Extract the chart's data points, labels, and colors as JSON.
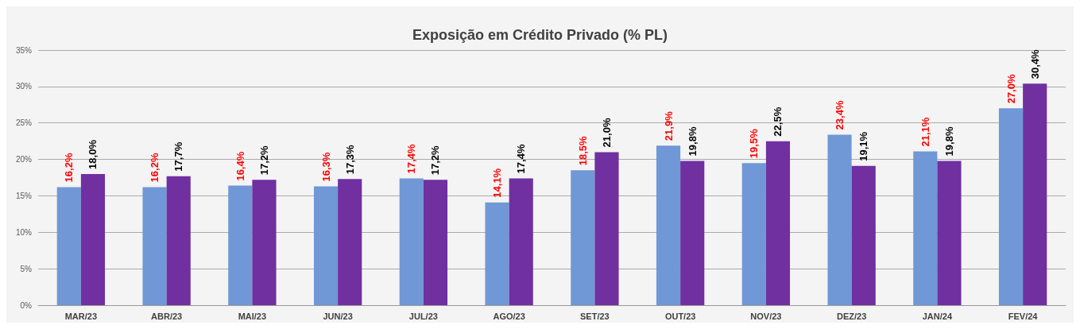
{
  "chart_data": {
    "type": "bar",
    "title": "Exposição em Crédito Privado (% PL)",
    "categories": [
      "MAR/23",
      "ABR/23",
      "MAI/23",
      "JUN/23",
      "JUL/23",
      "AGO/23",
      "SET/23",
      "OUT/23",
      "NOV/23",
      "DEZ/23",
      "JAN/24",
      "FEV/24"
    ],
    "series": [
      {
        "color": "#7098d6",
        "values": [
          16.2,
          16.2,
          16.4,
          16.3,
          17.4,
          14.1,
          18.5,
          21.9,
          19.5,
          23.4,
          21.1,
          27.0
        ],
        "value_labels": [
          "16,2%",
          "16,2%",
          "16,4%",
          "16,3%",
          "17,4%",
          "14,1%",
          "18,5%",
          "21,9%",
          "19,5%",
          "23,4%",
          "21,1%",
          "27,0%"
        ]
      },
      {
        "color": "#7030a0",
        "values": [
          18.0,
          17.7,
          17.2,
          17.3,
          17.2,
          17.4,
          21.0,
          19.8,
          22.5,
          19.1,
          19.8,
          30.4
        ],
        "value_labels": [
          "18,0%",
          "17,7%",
          "17,2%",
          "17,3%",
          "17,2%",
          "17,4%",
          "21,0%",
          "19,8%",
          "22,5%",
          "19,1%",
          "19,8%",
          "30,4%"
        ]
      }
    ],
    "ylim": [
      0,
      35
    ],
    "yticks": [
      {
        "value": 0,
        "label": "0%"
      },
      {
        "value": 5,
        "label": "5%"
      },
      {
        "value": 10,
        "label": "10%"
      },
      {
        "value": 15,
        "label": "15%"
      },
      {
        "value": 20,
        "label": "20%"
      },
      {
        "value": 25,
        "label": "25%"
      },
      {
        "value": 30,
        "label": "30%"
      },
      {
        "value": 35,
        "label": "35%"
      }
    ],
    "grid": true
  }
}
